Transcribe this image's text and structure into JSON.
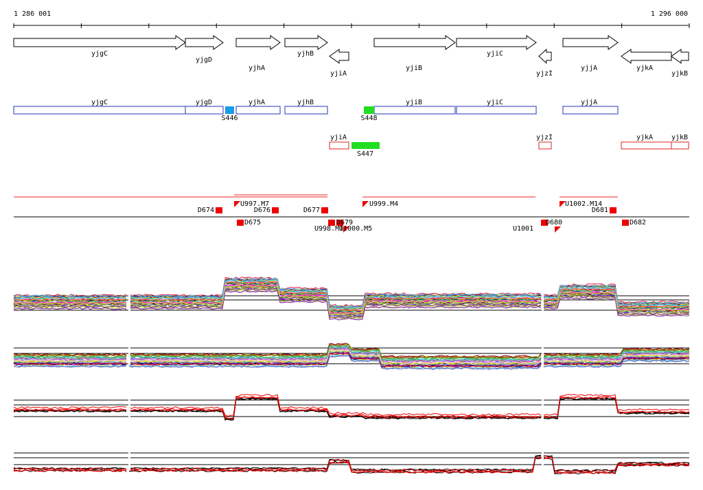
{
  "ruler": {
    "start": "1 286 001",
    "end": "1 296 000"
  },
  "gene_arrows": [
    "yjgC",
    "yjgD",
    "yjhA",
    "yjhB",
    "yjiA",
    "yjiB",
    "yjiC",
    "yjzI",
    "yjjA",
    "yjkA",
    "yjkB"
  ],
  "forward_boxes": [
    "yjgC",
    "yjgD",
    "yjhA",
    "yjhB",
    "yjiB",
    "yjiC",
    "yjjA"
  ],
  "forward_features": [
    "S446",
    "S448"
  ],
  "reverse_boxes": [
    "yjiA",
    "yjzI",
    "yjkA",
    "yjkB"
  ],
  "reverse_features": [
    "S447"
  ],
  "segments": [
    "D674",
    "U997.M7",
    "D676",
    "D677",
    "U999.M4",
    "D675",
    "U998.M1",
    "U1000.M5",
    "D679",
    "U1001",
    "D680",
    "U1002.M14",
    "D681",
    "D682"
  ]
}
